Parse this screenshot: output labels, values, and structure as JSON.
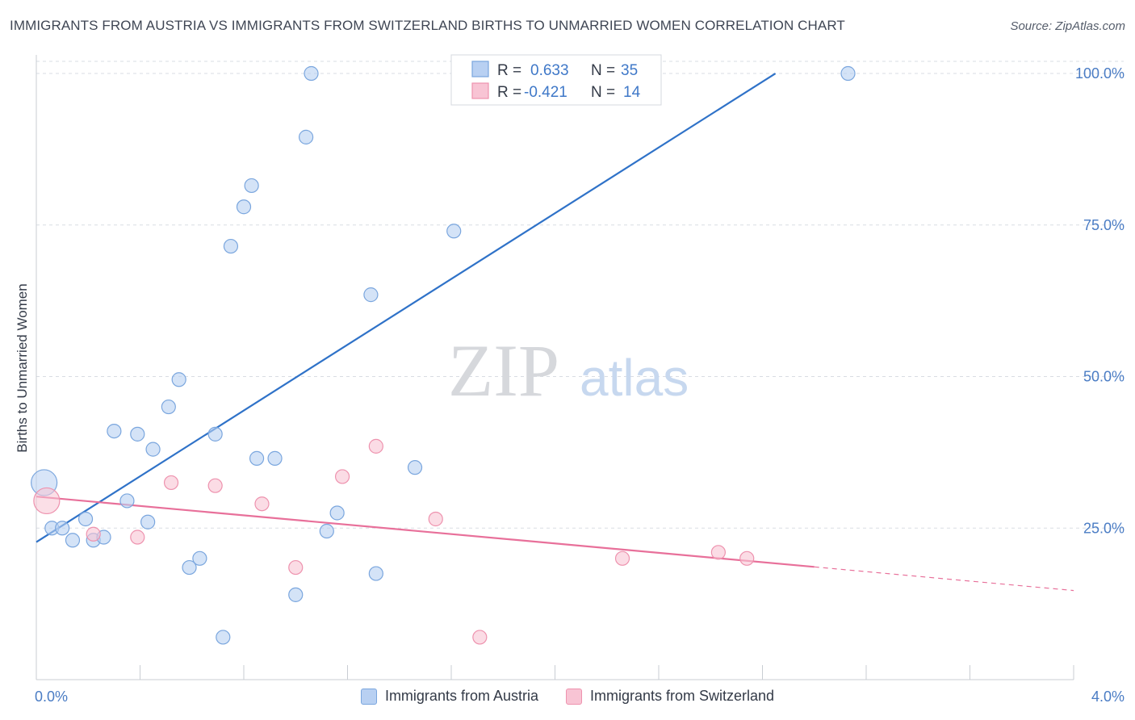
{
  "header": {
    "title": "IMMIGRANTS FROM AUSTRIA VS IMMIGRANTS FROM SWITZERLAND BIRTHS TO UNMARRIED WOMEN CORRELATION CHART",
    "source": "Source: ZipAtlas.com"
  },
  "watermark": {
    "zip": "ZIP",
    "atlas": "atlas"
  },
  "legend": {
    "rows": [
      {
        "r_label": "R =",
        "r_value": "0.633",
        "n_label": "N =",
        "n_value": "35"
      },
      {
        "r_label": "R =",
        "r_value": "-0.421",
        "n_label": "N =",
        "n_value": "14"
      }
    ]
  },
  "colors": {
    "austria_fill": "#b8d0f2",
    "austria_stroke": "#7aa6de",
    "austria_line": "#2f72c8",
    "switzerland_fill": "#f8c4d4",
    "switzerland_stroke": "#ee92ae",
    "switzerland_line": "#e8709a",
    "tick_label": "#4a7cc4",
    "grid": "#d9dde3"
  },
  "chart_data": {
    "type": "scatter",
    "title": "IMMIGRANTS FROM AUSTRIA VS IMMIGRANTS FROM SWITZERLAND BIRTHS TO UNMARRIED WOMEN CORRELATION CHART",
    "xlabel": "",
    "ylabel": "Births to Unmarried Women",
    "xlim": [
      0,
      4
    ],
    "ylim": [
      0,
      102
    ],
    "x_tick_labels": [
      "0.0%",
      "4.0%"
    ],
    "y_ticks": [
      25,
      50,
      75,
      100
    ],
    "y_tick_labels": [
      "25.0%",
      "50.0%",
      "75.0%",
      "100.0%"
    ],
    "grid": true,
    "legend_position": "top-center",
    "series": [
      {
        "name": "Immigrants from Austria",
        "R": 0.633,
        "N": 35,
        "points": [
          {
            "x": 0.03,
            "y": 32.5,
            "big": true
          },
          {
            "x": 0.06,
            "y": 25.0
          },
          {
            "x": 0.1,
            "y": 25.0
          },
          {
            "x": 0.14,
            "y": 23.0
          },
          {
            "x": 0.19,
            "y": 26.5
          },
          {
            "x": 0.22,
            "y": 23.0
          },
          {
            "x": 0.26,
            "y": 23.5
          },
          {
            "x": 0.3,
            "y": 41.0
          },
          {
            "x": 0.35,
            "y": 29.5
          },
          {
            "x": 0.39,
            "y": 40.5
          },
          {
            "x": 0.43,
            "y": 26.0
          },
          {
            "x": 0.45,
            "y": 38.0
          },
          {
            "x": 0.51,
            "y": 45.0
          },
          {
            "x": 0.55,
            "y": 49.5
          },
          {
            "x": 0.59,
            "y": 18.5
          },
          {
            "x": 0.63,
            "y": 20.0
          },
          {
            "x": 0.69,
            "y": 40.5
          },
          {
            "x": 0.72,
            "y": 7.0
          },
          {
            "x": 0.75,
            "y": 71.5
          },
          {
            "x": 0.8,
            "y": 78.0
          },
          {
            "x": 0.83,
            "y": 81.5
          },
          {
            "x": 0.85,
            "y": 36.5
          },
          {
            "x": 0.92,
            "y": 36.5
          },
          {
            "x": 1.0,
            "y": 14.0
          },
          {
            "x": 1.04,
            "y": 89.5
          },
          {
            "x": 1.06,
            "y": 100.0
          },
          {
            "x": 1.12,
            "y": 24.5
          },
          {
            "x": 1.16,
            "y": 27.5
          },
          {
            "x": 1.29,
            "y": 63.5
          },
          {
            "x": 1.31,
            "y": 17.5
          },
          {
            "x": 1.46,
            "y": 35.0
          },
          {
            "x": 1.61,
            "y": 74.0
          },
          {
            "x": 1.83,
            "y": 100.0
          },
          {
            "x": 2.36,
            "y": 100.0
          },
          {
            "x": 3.13,
            "y": 100.0
          }
        ],
        "trend": {
          "x0": 0.0,
          "y0": 22.7,
          "x1": 2.85,
          "y1": 100.0
        }
      },
      {
        "name": "Immigrants from Switzerland",
        "R": -0.421,
        "N": 14,
        "points": [
          {
            "x": 0.04,
            "y": 29.5,
            "big": true
          },
          {
            "x": 0.22,
            "y": 24.0
          },
          {
            "x": 0.39,
            "y": 23.5
          },
          {
            "x": 0.52,
            "y": 32.5
          },
          {
            "x": 0.69,
            "y": 32.0
          },
          {
            "x": 0.87,
            "y": 29.0
          },
          {
            "x": 1.0,
            "y": 18.5
          },
          {
            "x": 1.18,
            "y": 33.5
          },
          {
            "x": 1.31,
            "y": 38.5
          },
          {
            "x": 1.54,
            "y": 26.5
          },
          {
            "x": 1.71,
            "y": 7.0
          },
          {
            "x": 2.26,
            "y": 20.0
          },
          {
            "x": 2.63,
            "y": 21.0
          },
          {
            "x": 2.74,
            "y": 20.0
          }
        ],
        "trend": {
          "x0": 0.0,
          "y0": 30.2,
          "x1": 3.0,
          "y1": 18.6
        },
        "trend_dashed": {
          "x0": 3.0,
          "y0": 18.6,
          "x1": 4.0,
          "y1": 14.7
        }
      }
    ]
  }
}
